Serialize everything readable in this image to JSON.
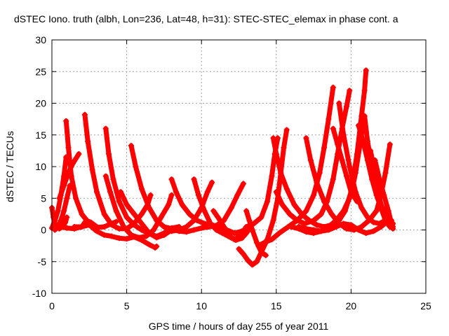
{
  "chart_data": {
    "type": "scatter",
    "title": "dSTEC Iono. truth (albh, Lon=236, Lat=48, h=31): STEC-STEC_elemax in phase cont. a",
    "xlabel": "GPS time / hours of day 255 of year 2011",
    "ylabel": "dSTEC  / TECUs",
    "xlim": [
      0,
      25
    ],
    "ylim": [
      -10,
      30
    ],
    "xticks": [
      "0",
      "5",
      "10",
      "15",
      "20",
      "25"
    ],
    "yticks": [
      "-10",
      "-5",
      "0",
      "5",
      "10",
      "15",
      "20",
      "25",
      "30"
    ],
    "grid": true,
    "marker_color": "#ff0000",
    "series": [
      {
        "points": [
          [
            0.0,
            3.5
          ],
          [
            0.1,
            2.0
          ],
          [
            0.2,
            1.0
          ],
          [
            0.35,
            0.4
          ],
          [
            0.5,
            0.2
          ],
          [
            0.7,
            0.5
          ],
          [
            0.9,
            1.2
          ],
          [
            1.0,
            2.0
          ]
        ]
      },
      {
        "points": [
          [
            0.0,
            0.3
          ],
          [
            0.2,
            1.5
          ],
          [
            0.4,
            3.0
          ],
          [
            0.6,
            5.5
          ],
          [
            0.8,
            8.5
          ],
          [
            0.95,
            11.5
          ]
        ]
      },
      {
        "points": [
          [
            0.2,
            0.0
          ],
          [
            0.4,
            0.5
          ],
          [
            0.6,
            1.5
          ],
          [
            0.8,
            3.0
          ],
          [
            1.0,
            5.0
          ],
          [
            1.2,
            7.0
          ]
        ]
      },
      {
        "points": [
          [
            0.95,
            17.2
          ],
          [
            1.1,
            13.0
          ],
          [
            1.3,
            8.5
          ],
          [
            1.6,
            5.0
          ],
          [
            2.0,
            2.5
          ],
          [
            2.5,
            1.0
          ],
          [
            3.0,
            0.4
          ],
          [
            3.5,
            0.5
          ],
          [
            4.0,
            1.0
          ],
          [
            4.3,
            1.3
          ]
        ]
      },
      {
        "points": [
          [
            0.3,
            0.8
          ],
          [
            0.6,
            0.5
          ],
          [
            1.0,
            0.3
          ],
          [
            1.5,
            0.2
          ],
          [
            2.0,
            0.5
          ],
          [
            2.3,
            1.5
          ],
          [
            2.6,
            1.2
          ],
          [
            3.0,
            0.5
          ]
        ]
      },
      {
        "points": [
          [
            0.5,
            5.0
          ],
          [
            0.8,
            7.0
          ],
          [
            1.1,
            9.0
          ],
          [
            1.4,
            10.5
          ],
          [
            1.8,
            12.0
          ]
        ]
      },
      {
        "points": [
          [
            2.2,
            18.2
          ],
          [
            2.4,
            14.0
          ],
          [
            2.7,
            9.5
          ],
          [
            3.0,
            6.0
          ],
          [
            3.5,
            2.5
          ],
          [
            4.0,
            0.8
          ],
          [
            4.5,
            0.2
          ],
          [
            5.0,
            0.2
          ],
          [
            5.5,
            1.0
          ],
          [
            6.0,
            2.5
          ],
          [
            6.4,
            4.0
          ],
          [
            6.6,
            5.5
          ]
        ]
      },
      {
        "points": [
          [
            3.6,
            16.0
          ],
          [
            3.8,
            12.0
          ],
          [
            4.1,
            8.0
          ],
          [
            4.5,
            4.5
          ],
          [
            5.0,
            2.0
          ],
          [
            5.5,
            0.8
          ],
          [
            6.0,
            0.0
          ],
          [
            6.5,
            -0.6
          ],
          [
            7.0,
            -1.0
          ],
          [
            7.5,
            -0.5
          ],
          [
            8.0,
            0.3
          ],
          [
            8.5,
            0.5
          ]
        ]
      },
      {
        "points": [
          [
            3.6,
            8.5
          ],
          [
            3.9,
            6.0
          ],
          [
            4.3,
            3.0
          ],
          [
            4.8,
            0.5
          ],
          [
            5.3,
            -0.8
          ],
          [
            5.8,
            -1.2
          ],
          [
            6.3,
            -1.0
          ],
          [
            6.8,
            0.0
          ],
          [
            7.3,
            2.0
          ],
          [
            7.8,
            4.0
          ],
          [
            8.0,
            5.5
          ]
        ]
      },
      {
        "points": [
          [
            5.3,
            13.3
          ],
          [
            5.6,
            10.0
          ],
          [
            6.0,
            6.5
          ],
          [
            6.5,
            3.5
          ],
          [
            7.0,
            1.5
          ],
          [
            7.5,
            0.5
          ],
          [
            8.0,
            -0.2
          ],
          [
            8.5,
            0.0
          ],
          [
            9.0,
            0.5
          ],
          [
            9.5,
            1.5
          ],
          [
            10.0,
            3.5
          ],
          [
            10.4,
            6.0
          ],
          [
            10.7,
            7.5
          ]
        ]
      },
      {
        "points": [
          [
            4.6,
            6.0
          ],
          [
            5.0,
            4.0
          ],
          [
            5.5,
            2.5
          ],
          [
            6.0,
            1.0
          ],
          [
            6.5,
            -0.5
          ],
          [
            7.0,
            -1.2
          ],
          [
            7.5,
            -0.8
          ],
          [
            8.0,
            0.0
          ]
        ]
      },
      {
        "points": [
          [
            1.5,
            0.5
          ],
          [
            2.0,
            0.5
          ],
          [
            2.5,
            0.8
          ],
          [
            3.0,
            -0.2
          ],
          [
            3.5,
            -0.8
          ],
          [
            4.0,
            -1.0
          ],
          [
            4.5,
            -1.3
          ],
          [
            5.0,
            -1.4
          ],
          [
            5.5,
            -1.1
          ],
          [
            6.0,
            -1.6
          ],
          [
            6.5,
            -2.3
          ],
          [
            6.9,
            -2.8
          ],
          [
            7.0,
            -2.6
          ]
        ]
      },
      {
        "points": [
          [
            8.0,
            8.0
          ],
          [
            8.3,
            6.0
          ],
          [
            8.7,
            4.0
          ],
          [
            9.2,
            2.5
          ],
          [
            9.7,
            1.5
          ],
          [
            10.2,
            1.0
          ],
          [
            10.7,
            0.8
          ],
          [
            11.2,
            0.5
          ],
          [
            11.7,
            0.0
          ],
          [
            12.2,
            -0.5
          ],
          [
            12.7,
            -0.2
          ]
        ]
      },
      {
        "points": [
          [
            9.5,
            8.0
          ],
          [
            9.8,
            5.5
          ],
          [
            10.2,
            3.0
          ],
          [
            10.6,
            1.0
          ],
          [
            11.0,
            0.0
          ],
          [
            11.4,
            -0.5
          ],
          [
            11.8,
            -1.0
          ],
          [
            12.2,
            -1.5
          ],
          [
            12.6,
            -0.8
          ],
          [
            13.0,
            0.5
          ]
        ]
      },
      {
        "points": [
          [
            7.5,
            0.5
          ],
          [
            8.0,
            0.2
          ],
          [
            8.5,
            -0.2
          ],
          [
            9.0,
            -0.3
          ],
          [
            9.5,
            0.0
          ],
          [
            10.0,
            0.3
          ],
          [
            10.5,
            0.5
          ],
          [
            11.0,
            0.7
          ],
          [
            11.5,
            1.5
          ],
          [
            12.0,
            3.5
          ],
          [
            12.4,
            5.5
          ],
          [
            12.8,
            7.3
          ]
        ]
      },
      {
        "points": [
          [
            10.8,
            3.0
          ],
          [
            11.1,
            2.0
          ],
          [
            11.5,
            0.5
          ],
          [
            11.9,
            -1.0
          ],
          [
            12.3,
            -1.6
          ],
          [
            12.7,
            -1.3
          ],
          [
            13.0,
            -0.5
          ],
          [
            13.3,
            0.5
          ]
        ]
      },
      {
        "points": [
          [
            13.0,
            3.0
          ],
          [
            13.2,
            1.5
          ],
          [
            13.4,
            0.0
          ],
          [
            13.7,
            -2.0
          ],
          [
            14.0,
            -3.5
          ],
          [
            14.3,
            -4.0
          ]
        ]
      },
      {
        "points": [
          [
            12.5,
            -3.0
          ],
          [
            12.8,
            -3.8
          ],
          [
            13.1,
            -4.8
          ],
          [
            13.4,
            -5.5
          ],
          [
            13.7,
            -5.0
          ],
          [
            14.0,
            -3.5
          ],
          [
            14.4,
            -1.5
          ],
          [
            14.8,
            1.5
          ],
          [
            15.1,
            5.0
          ],
          [
            15.3,
            9.0
          ],
          [
            15.5,
            13.0
          ],
          [
            15.7,
            15.8
          ]
        ]
      },
      {
        "points": [
          [
            13.8,
            -2.5
          ],
          [
            14.2,
            -2.0
          ],
          [
            14.7,
            -1.5
          ],
          [
            15.2,
            -0.5
          ],
          [
            15.8,
            0.5
          ],
          [
            16.4,
            1.5
          ],
          [
            17.0,
            3.0
          ],
          [
            17.5,
            5.5
          ],
          [
            17.9,
            9.0
          ],
          [
            18.2,
            13.0
          ],
          [
            18.5,
            17.5
          ],
          [
            18.8,
            22.5
          ]
        ]
      },
      {
        "points": [
          [
            13.0,
            0.5
          ],
          [
            13.5,
            1.0
          ],
          [
            14.0,
            2.0
          ],
          [
            14.4,
            4.5
          ],
          [
            14.7,
            8.5
          ],
          [
            14.9,
            12.0
          ],
          [
            15.1,
            14.5
          ]
        ]
      },
      {
        "points": [
          [
            15.0,
            6.0
          ],
          [
            15.4,
            4.0
          ],
          [
            15.9,
            2.5
          ],
          [
            16.4,
            1.5
          ],
          [
            16.9,
            1.0
          ],
          [
            17.5,
            1.5
          ],
          [
            18.0,
            2.5
          ],
          [
            18.4,
            4.5
          ],
          [
            18.8,
            8.0
          ],
          [
            19.1,
            12.0
          ],
          [
            19.4,
            16.0
          ],
          [
            19.7,
            19.5
          ],
          [
            19.9,
            22.0
          ]
        ]
      },
      {
        "points": [
          [
            14.8,
            14.5
          ],
          [
            15.0,
            12.0
          ],
          [
            15.3,
            9.0
          ],
          [
            15.7,
            6.5
          ],
          [
            16.2,
            4.0
          ],
          [
            16.7,
            2.5
          ],
          [
            17.2,
            1.5
          ],
          [
            17.7,
            0.8
          ],
          [
            18.2,
            0.5
          ],
          [
            18.7,
            0.8
          ],
          [
            19.2,
            1.5
          ],
          [
            19.6,
            3.0
          ],
          [
            20.0,
            6.0
          ],
          [
            20.4,
            12.0
          ],
          [
            20.7,
            18.0
          ],
          [
            20.9,
            22.0
          ],
          [
            21.0,
            25.2
          ]
        ]
      },
      {
        "points": [
          [
            16.0,
            0.5
          ],
          [
            16.5,
            0.2
          ],
          [
            17.0,
            -0.3
          ],
          [
            17.5,
            -0.5
          ],
          [
            18.0,
            -0.2
          ],
          [
            18.5,
            0.5
          ],
          [
            19.0,
            1.5
          ],
          [
            19.5,
            3.0
          ],
          [
            20.0,
            5.5
          ],
          [
            20.3,
            9.0
          ],
          [
            20.6,
            13.5
          ],
          [
            20.8,
            16.5
          ]
        ]
      },
      {
        "points": [
          [
            17.0,
            14.5
          ],
          [
            17.3,
            11.0
          ],
          [
            17.7,
            7.5
          ],
          [
            18.2,
            4.5
          ],
          [
            18.7,
            2.5
          ],
          [
            19.2,
            1.0
          ],
          [
            19.7,
            0.2
          ],
          [
            20.2,
            0.0
          ],
          [
            20.7,
            0.5
          ],
          [
            21.2,
            1.5
          ],
          [
            21.7,
            3.0
          ],
          [
            22.0,
            5.5
          ],
          [
            22.3,
            9.0
          ],
          [
            22.6,
            13.5
          ]
        ]
      },
      {
        "points": [
          [
            19.2,
            20.0
          ],
          [
            19.5,
            15.0
          ],
          [
            19.9,
            10.0
          ],
          [
            20.3,
            6.0
          ],
          [
            20.7,
            3.5
          ],
          [
            21.1,
            2.0
          ],
          [
            21.5,
            1.2
          ],
          [
            21.9,
            1.0
          ],
          [
            22.3,
            1.5
          ],
          [
            22.7,
            1.5
          ]
        ]
      },
      {
        "points": [
          [
            20.9,
            18.0
          ],
          [
            21.1,
            14.0
          ],
          [
            21.4,
            10.0
          ],
          [
            21.7,
            6.5
          ],
          [
            22.0,
            4.0
          ],
          [
            22.3,
            2.5
          ],
          [
            22.6,
            1.5
          ],
          [
            22.8,
            0.5
          ]
        ]
      },
      {
        "points": [
          [
            21.6,
            11.0
          ],
          [
            21.9,
            8.0
          ],
          [
            22.2,
            5.5
          ],
          [
            22.5,
            3.0
          ],
          [
            22.7,
            1.0
          ]
        ]
      },
      {
        "points": [
          [
            21.3,
            12.5
          ],
          [
            21.6,
            9.0
          ],
          [
            21.9,
            5.0
          ],
          [
            22.2,
            2.5
          ],
          [
            22.5,
            0.8
          ],
          [
            22.8,
            0.2
          ]
        ]
      },
      {
        "points": [
          [
            16.5,
            0.5
          ],
          [
            17.0,
            0.2
          ],
          [
            17.5,
            0.0
          ],
          [
            18.0,
            -0.2
          ],
          [
            18.5,
            0.0
          ],
          [
            19.0,
            0.5
          ],
          [
            19.5,
            1.0
          ],
          [
            20.0,
            0.8
          ],
          [
            20.5,
            0.0
          ],
          [
            21.0,
            -0.5
          ],
          [
            21.5,
            -0.2
          ],
          [
            22.0,
            0.5
          ],
          [
            22.5,
            1.5
          ],
          [
            22.8,
            1.0
          ]
        ]
      },
      {
        "points": [
          [
            18.8,
            16.0
          ],
          [
            19.1,
            13.5
          ],
          [
            19.4,
            11.0
          ],
          [
            19.7,
            8.5
          ],
          [
            20.0,
            6.0
          ],
          [
            20.4,
            4.5
          ]
        ]
      },
      {
        "points": [
          [
            20.5,
            16.5
          ],
          [
            20.8,
            14.0
          ],
          [
            21.1,
            11.0
          ],
          [
            21.4,
            8.0
          ],
          [
            21.7,
            5.5
          ],
          [
            22.0,
            3.5
          ],
          [
            22.3,
            1.5
          ],
          [
            22.6,
            0.5
          ]
        ]
      }
    ]
  }
}
